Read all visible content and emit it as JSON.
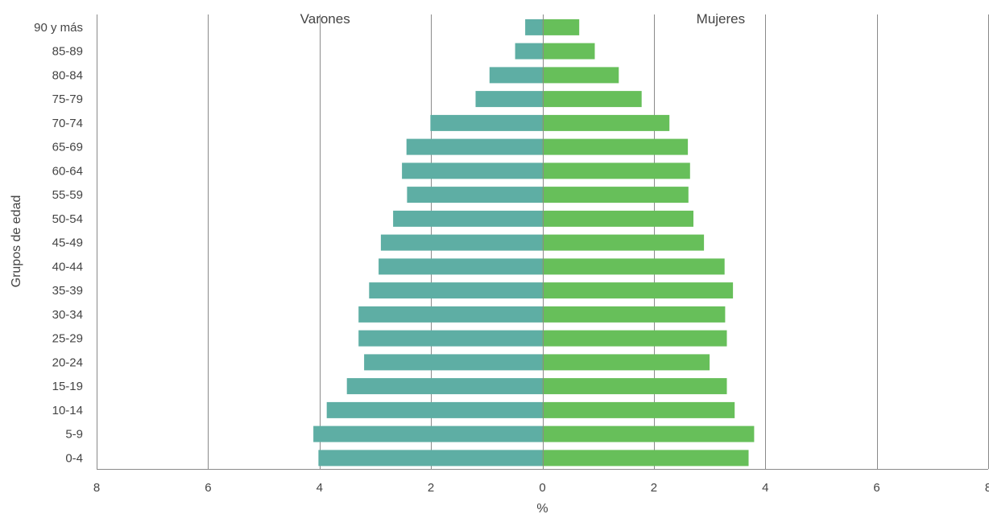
{
  "chart_data": {
    "type": "bar",
    "orientation": "horizontal-population-pyramid",
    "ylabel": "Grupos de edad",
    "xlabel": "%",
    "xlim": [
      -8,
      8
    ],
    "xticks": [
      -8,
      -6,
      -4,
      -2,
      0,
      2,
      4,
      6,
      8
    ],
    "xtick_labels": [
      "8",
      "6",
      "4",
      "2",
      "0",
      "2",
      "4",
      "6",
      "8"
    ],
    "grid": true,
    "categories": [
      "0-4",
      "5-9",
      "10-14",
      "15-19",
      "20-24",
      "25-29",
      "30-34",
      "35-39",
      "40-44",
      "45-49",
      "50-54",
      "55-59",
      "60-64",
      "65-69",
      "70-74",
      "75-79",
      "80-84",
      "85-89",
      "90 y más"
    ],
    "series": [
      {
        "name": "Varones",
        "side": "left",
        "color": "#5eaea4",
        "values": [
          4.02,
          4.11,
          3.87,
          3.51,
          3.2,
          3.3,
          3.3,
          3.11,
          2.94,
          2.9,
          2.68,
          2.43,
          2.52,
          2.44,
          2.01,
          1.2,
          0.95,
          0.49,
          0.31
        ]
      },
      {
        "name": "Mujeres",
        "side": "right",
        "color": "#67bf5a",
        "values": [
          3.7,
          3.8,
          3.45,
          3.31,
          3.0,
          3.31,
          3.28,
          3.42,
          3.27,
          2.9,
          2.71,
          2.62,
          2.65,
          2.61,
          2.28,
          1.78,
          1.37,
          0.94,
          0.66
        ]
      }
    ]
  }
}
